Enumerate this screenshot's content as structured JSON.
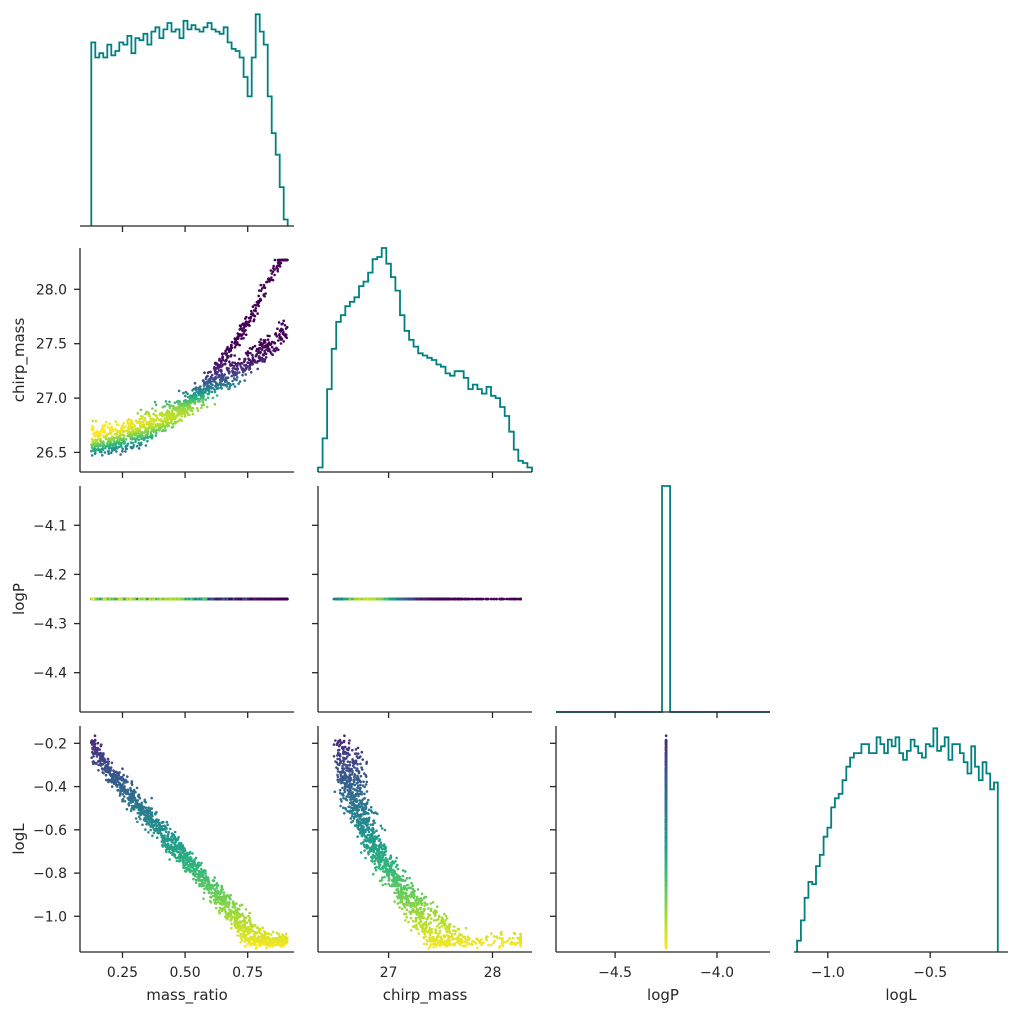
{
  "chart_data": {
    "type": "corner",
    "variables": [
      "mass_ratio",
      "chirp_mass",
      "logP",
      "logL"
    ],
    "ranges": {
      "mass_ratio": [
        0.08,
        0.935
      ],
      "chirp_mass": [
        26.32,
        28.38
      ],
      "logP": [
        -4.79,
        -3.74
      ],
      "logL": [
        -1.165,
        -0.12
      ]
    },
    "logP_scatter_range": [
      -4.48,
      -4.02
    ],
    "ticks": {
      "mass_ratio": [
        0.25,
        0.5,
        0.75
      ],
      "chirp_mass": [
        27,
        28
      ],
      "logP": [
        -4.5,
        -4.0
      ],
      "logL": [
        -1.0,
        -0.5
      ],
      "chirp_mass_y": [
        26.5,
        27.0,
        27.5,
        28.0
      ],
      "logP_y": [
        -4.4,
        -4.3,
        -4.2,
        -4.1
      ],
      "logL_y": [
        -1.0,
        -0.8,
        -0.6,
        -0.4,
        -0.2
      ]
    },
    "tick_labels": {
      "mass_ratio": [
        "0.25",
        "0.50",
        "0.75"
      ],
      "chirp_mass": [
        "27",
        "28"
      ],
      "logP": [
        "−4.5",
        "−4.0"
      ],
      "logL": [
        "−1.0",
        "−0.5"
      ],
      "chirp_mass_y": [
        "26.5",
        "27.0",
        "27.5",
        "28.0"
      ],
      "logP_y": [
        "−4.4",
        "−4.3",
        "−4.2",
        "−4.1"
      ],
      "logL_y": [
        "−1.0",
        "−0.8",
        "−0.6",
        "−0.4",
        "−0.2"
      ]
    },
    "axis_labels": {
      "x": [
        "mass_ratio",
        "chirp_mass",
        "logP",
        "logL"
      ],
      "y": [
        "chirp_mass",
        "logP",
        "logL"
      ]
    },
    "histograms": {
      "mass_ratio": {
        "range": [
          0.125,
          0.91
        ],
        "heights": [
          0.85,
          0.78,
          0.8,
          0.78,
          0.84,
          0.79,
          0.81,
          0.85,
          0.84,
          0.88,
          0.8,
          0.87,
          0.86,
          0.89,
          0.84,
          0.9,
          0.92,
          0.87,
          0.91,
          0.94,
          0.9,
          0.91,
          0.87,
          0.95,
          0.91,
          0.93,
          0.91,
          0.9,
          0.92,
          0.94,
          0.91,
          0.9,
          0.89,
          0.92,
          0.85,
          0.82,
          0.81,
          0.78,
          0.69,
          0.6,
          0.78,
          0.98,
          0.9,
          0.84,
          0.6,
          0.43,
          0.33,
          0.18,
          0.03
        ]
      },
      "chirp_mass": {
        "range": [
          26.32,
          28.38
        ],
        "heights": [
          0.02,
          0.15,
          0.37,
          0.55,
          0.67,
          0.7,
          0.74,
          0.76,
          0.78,
          0.83,
          0.85,
          0.89,
          0.95,
          0.96,
          1.0,
          0.93,
          0.87,
          0.81,
          0.7,
          0.63,
          0.59,
          0.56,
          0.53,
          0.52,
          0.51,
          0.5,
          0.48,
          0.47,
          0.44,
          0.43,
          0.45,
          0.45,
          0.42,
          0.37,
          0.39,
          0.37,
          0.35,
          0.38,
          0.34,
          0.33,
          0.29,
          0.25,
          0.18,
          0.1,
          0.05,
          0.04,
          0.02
        ]
      },
      "logP": {
        "bins": [
          [
            -4.27,
            -4.23,
            1.0
          ]
        ]
      },
      "logL": {
        "range": [
          -1.15,
          -0.17
        ],
        "heights": [
          0.05,
          0.14,
          0.24,
          0.31,
          0.3,
          0.38,
          0.43,
          0.51,
          0.55,
          0.64,
          0.68,
          0.7,
          0.76,
          0.82,
          0.86,
          0.88,
          0.88,
          0.92,
          0.92,
          0.88,
          0.88,
          0.95,
          0.92,
          0.88,
          0.94,
          0.91,
          0.95,
          0.88,
          0.85,
          0.89,
          0.94,
          0.91,
          0.88,
          0.86,
          0.92,
          0.91,
          0.99,
          0.89,
          0.91,
          0.95,
          0.85,
          0.92,
          0.92,
          0.88,
          0.84,
          0.79,
          0.91,
          0.82,
          0.76,
          0.84,
          0.79,
          0.72,
          0.75
        ]
      }
    },
    "samples": {
      "mass_ratio": "uniform 0.125-0.91",
      "chirp_mass": "26.42-28.27",
      "logP": -4.25,
      "logL": "-1.15 to -0.165"
    },
    "colormap": "viridis",
    "colors": {
      "hist_line": "#008080",
      "axis": "#262626",
      "viridis": [
        "#440154",
        "#482878",
        "#3e4a89",
        "#31688e",
        "#26828e",
        "#1f9e89",
        "#35b779",
        "#6ece58",
        "#b5de2b",
        "#fde725"
      ]
    }
  }
}
